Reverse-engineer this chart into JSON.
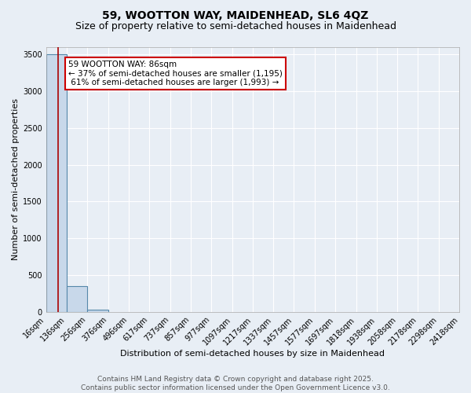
{
  "title_line1": "59, WOOTTON WAY, MAIDENHEAD, SL6 4QZ",
  "title_line2": "Size of property relative to semi-detached houses in Maidenhead",
  "xlabel": "Distribution of semi-detached houses by size in Maidenhead",
  "ylabel": "Number of semi-detached properties",
  "bin_edges": [
    16,
    136,
    256,
    376,
    496,
    617,
    737,
    857,
    977,
    1097,
    1217,
    1337,
    1457,
    1577,
    1697,
    1818,
    1938,
    2058,
    2178,
    2298,
    2418
  ],
  "bar_heights": [
    3500,
    350,
    30,
    0,
    0,
    0,
    0,
    0,
    0,
    0,
    0,
    0,
    0,
    0,
    0,
    0,
    0,
    0,
    0,
    0
  ],
  "bar_color": "#c8d8ea",
  "bar_edge_color": "#5588aa",
  "property_sqm": 86,
  "smaller_pct": 37,
  "smaller_count": 1195,
  "larger_pct": 61,
  "larger_count": 1993,
  "vline_color": "#aa0000",
  "annotation_box_color": "#cc0000",
  "ylim": [
    0,
    3600
  ],
  "yticks": [
    0,
    500,
    1000,
    1500,
    2000,
    2500,
    3000,
    3500
  ],
  "background_color": "#e8eef5",
  "plot_bg_color": "#e8eef5",
  "footer_line1": "Contains HM Land Registry data © Crown copyright and database right 2025.",
  "footer_line2": "Contains public sector information licensed under the Open Government Licence v3.0.",
  "title_fontsize": 10,
  "subtitle_fontsize": 9,
  "axis_label_fontsize": 8,
  "tick_fontsize": 7,
  "footer_fontsize": 6.5,
  "annot_fontsize": 7.5
}
